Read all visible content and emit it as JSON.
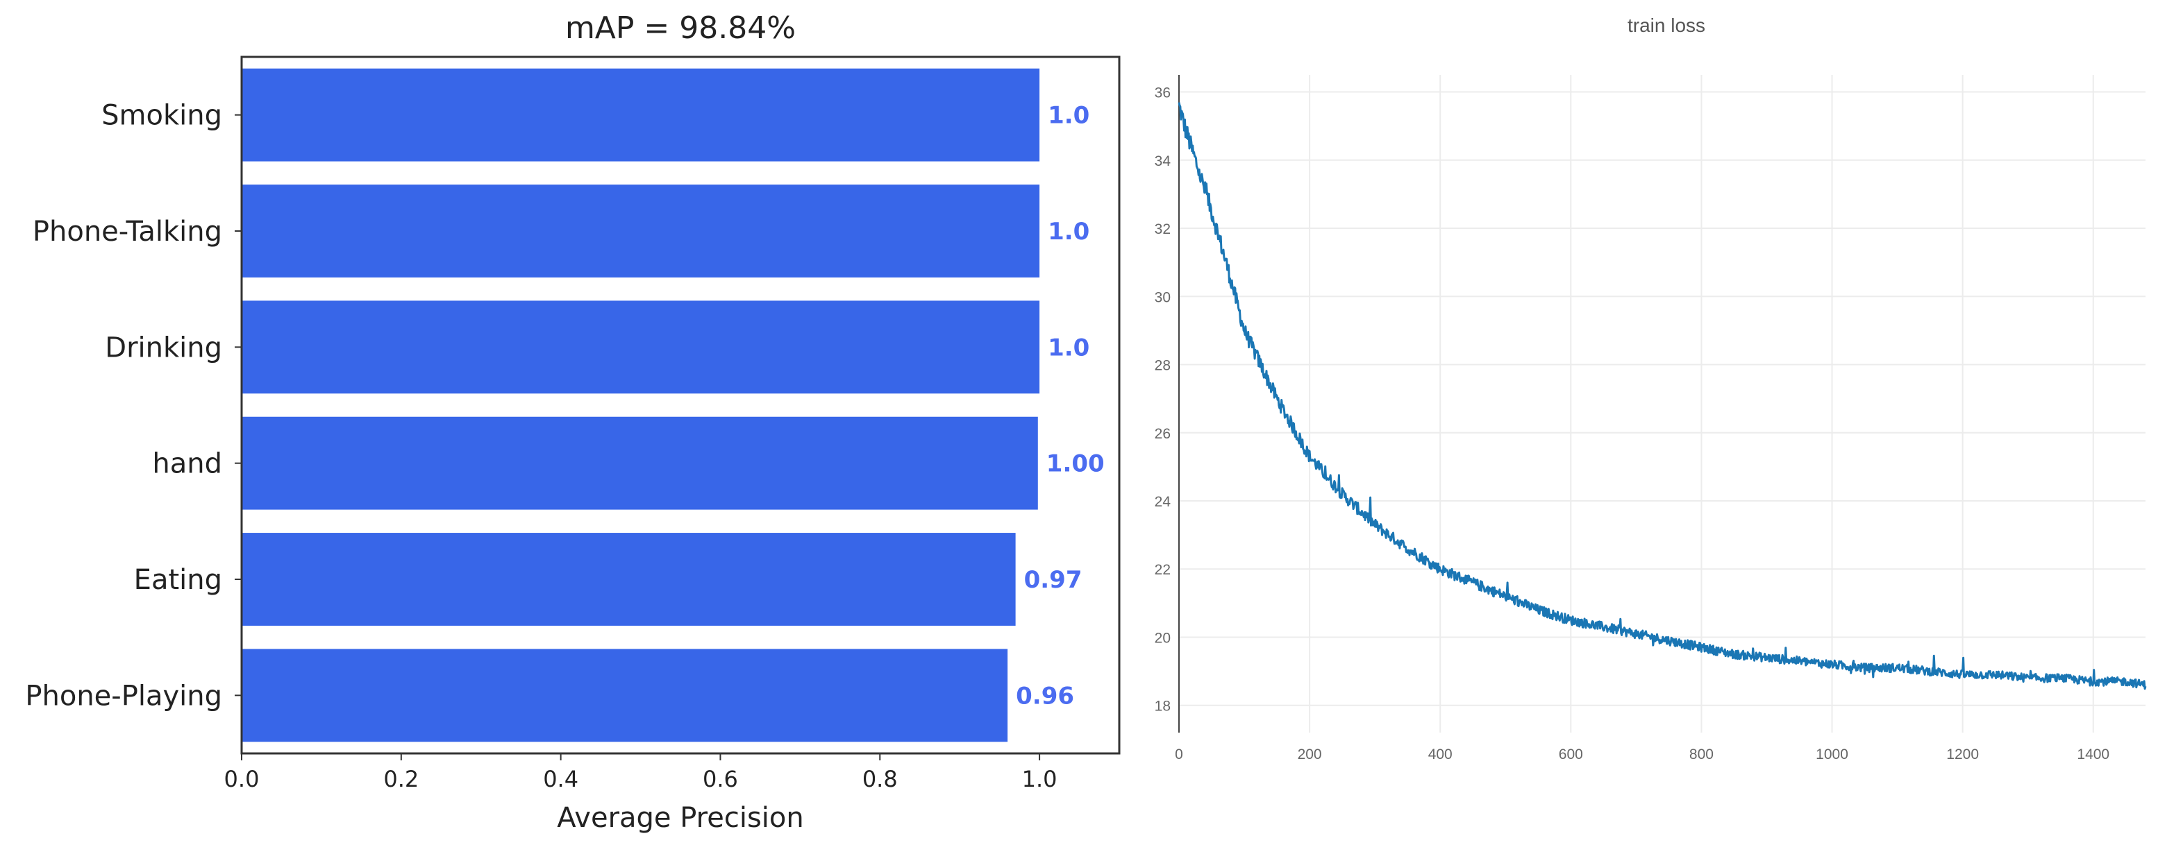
{
  "chart_data": [
    {
      "type": "bar",
      "orientation": "horizontal",
      "title": "mAP = 98.84%",
      "xlabel": "Average Precision",
      "ylabel": "",
      "xlim": [
        0,
        1.1
      ],
      "x_ticks": [
        "0.0",
        "0.2",
        "0.4",
        "0.6",
        "0.8",
        "1.0"
      ],
      "x_tick_values": [
        0,
        0.2,
        0.4,
        0.6,
        0.8,
        1.0
      ],
      "categories": [
        "Smoking",
        "Phone-Talking",
        "Drinking",
        "hand",
        "Eating",
        "Phone-Playing"
      ],
      "values": [
        1.0,
        1.0,
        1.0,
        0.998,
        0.97,
        0.96
      ],
      "value_labels": [
        "1.0",
        "1.0",
        "1.0",
        "1.00",
        "0.97",
        "0.96"
      ],
      "bar_color": "#3866e8",
      "label_color": "#4b6cf0",
      "grid": false
    },
    {
      "type": "line",
      "title": "train loss",
      "xlabel": "",
      "ylabel": "",
      "xlim": [
        0,
        1480
      ],
      "ylim": [
        17.2,
        36.5
      ],
      "x_ticks": [
        "0",
        "200",
        "400",
        "600",
        "800",
        "1000",
        "1200",
        "1400"
      ],
      "x_tick_values": [
        0,
        200,
        400,
        600,
        800,
        1000,
        1200,
        1400
      ],
      "y_ticks": [
        "18",
        "20",
        "22",
        "24",
        "26",
        "28",
        "30",
        "32",
        "34",
        "36"
      ],
      "y_tick_values": [
        18,
        20,
        22,
        24,
        26,
        28,
        30,
        32,
        34,
        36
      ],
      "grid": true,
      "line_color": "#1a76b4",
      "series": [
        {
          "x": [
            0,
            10,
            25,
            50,
            75,
            100,
            150,
            200,
            250,
            300,
            350,
            400,
            450,
            500,
            550,
            600,
            650,
            700,
            750,
            800,
            850,
            900,
            950,
            1000,
            1050,
            1100,
            1150,
            1200,
            1250,
            1300,
            1350,
            1400,
            1450,
            1480
          ],
          "values": [
            35.6,
            34.9,
            34.0,
            32.5,
            30.8,
            29.0,
            27.0,
            25.3,
            24.2,
            23.3,
            22.6,
            22.0,
            21.6,
            21.2,
            20.8,
            20.5,
            20.3,
            20.1,
            19.9,
            19.7,
            19.5,
            19.4,
            19.3,
            19.2,
            19.1,
            19.1,
            19.0,
            18.9,
            18.9,
            18.8,
            18.8,
            18.7,
            18.7,
            18.6
          ]
        }
      ]
    }
  ]
}
